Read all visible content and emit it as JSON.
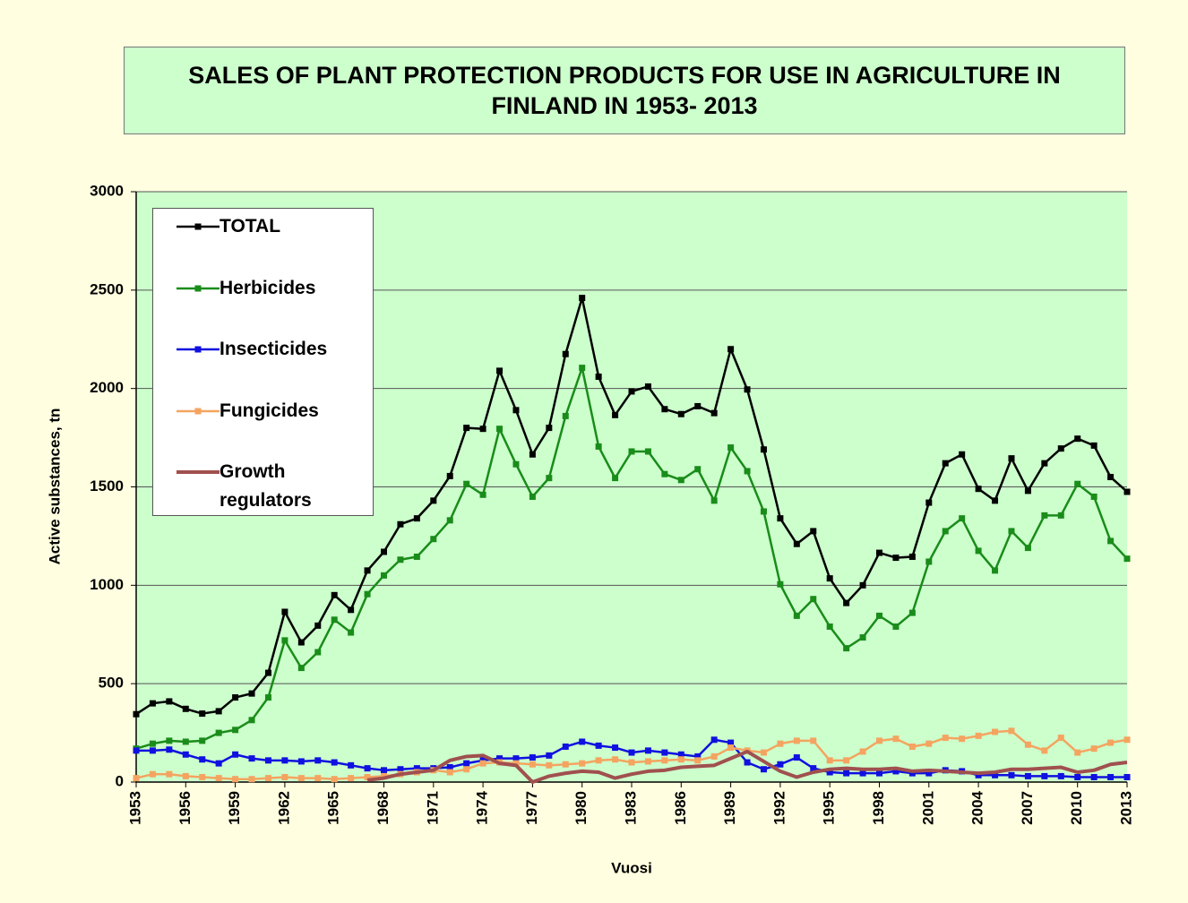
{
  "chart_data": {
    "type": "line",
    "title": "SALES OF PLANT PROTECTION PRODUCTS FOR USE IN AGRICULTURE IN FINLAND IN 1953- 2013",
    "xlabel": "Vuosi",
    "ylabel": "Active substances, tn",
    "x": [
      1953,
      1954,
      1955,
      1956,
      1957,
      1958,
      1959,
      1960,
      1961,
      1962,
      1963,
      1964,
      1965,
      1966,
      1967,
      1968,
      1969,
      1970,
      1971,
      1972,
      1973,
      1974,
      1975,
      1976,
      1977,
      1978,
      1979,
      1980,
      1981,
      1982,
      1983,
      1984,
      1985,
      1986,
      1987,
      1988,
      1989,
      1990,
      1991,
      1992,
      1993,
      1994,
      1995,
      1996,
      1997,
      1998,
      1999,
      2000,
      2001,
      2002,
      2003,
      2004,
      2005,
      2006,
      2007,
      2008,
      2009,
      2010,
      2011,
      2012,
      2013
    ],
    "xlim": [
      1953,
      2013
    ],
    "xticks": [
      1953,
      1956,
      1959,
      1962,
      1965,
      1968,
      1971,
      1974,
      1977,
      1980,
      1983,
      1986,
      1989,
      1992,
      1995,
      1998,
      2001,
      2004,
      2007,
      2010,
      2013
    ],
    "ylim": [
      0,
      3000
    ],
    "yticks": [
      0,
      500,
      1000,
      1500,
      2000,
      2500,
      3000
    ],
    "grid": true,
    "legend": "upper left",
    "series": [
      {
        "name": "TOTAL",
        "color": "#000000",
        "marker": "square",
        "values": [
          345,
          400,
          410,
          372,
          348,
          360,
          430,
          450,
          555,
          865,
          710,
          795,
          950,
          875,
          1075,
          1170,
          1310,
          1340,
          1430,
          1555,
          1800,
          1795,
          2090,
          1890,
          1665,
          1800,
          2175,
          2460,
          2060,
          1865,
          1985,
          2010,
          1895,
          1870,
          1910,
          1875,
          2200,
          1995,
          1690,
          1340,
          1210,
          1275,
          1035,
          910,
          1000,
          1165,
          1140,
          1145,
          1420,
          1620,
          1665,
          1490,
          1430,
          1645,
          1480,
          1620,
          1695,
          1745,
          1710,
          1550,
          1475
        ]
      },
      {
        "name": "Herbicides",
        "color": "#1a8c1a",
        "marker": "square",
        "values": [
          170,
          195,
          210,
          205,
          210,
          250,
          265,
          315,
          430,
          720,
          580,
          660,
          825,
          760,
          955,
          1050,
          1130,
          1145,
          1235,
          1330,
          1515,
          1460,
          1795,
          1615,
          1450,
          1545,
          1860,
          2105,
          1705,
          1545,
          1680,
          1680,
          1565,
          1535,
          1590,
          1430,
          1700,
          1580,
          1375,
          1005,
          845,
          930,
          790,
          680,
          735,
          845,
          790,
          860,
          1120,
          1275,
          1340,
          1175,
          1075,
          1275,
          1190,
          1355,
          1355,
          1515,
          1450,
          1225,
          1135
        ]
      },
      {
        "name": "Insecticides",
        "color": "#1010e0",
        "marker": "square",
        "values": [
          160,
          160,
          165,
          140,
          115,
          95,
          140,
          120,
          110,
          110,
          105,
          110,
          100,
          85,
          70,
          60,
          65,
          70,
          70,
          75,
          95,
          110,
          120,
          120,
          125,
          135,
          180,
          205,
          185,
          175,
          150,
          160,
          150,
          140,
          130,
          215,
          200,
          100,
          65,
          90,
          125,
          70,
          50,
          45,
          45,
          45,
          55,
          45,
          45,
          60,
          55,
          35,
          35,
          35,
          30,
          30,
          30,
          25,
          25,
          25,
          25
        ]
      },
      {
        "name": "Fungicides",
        "color": "#f4a460",
        "marker": "square",
        "values": [
          20,
          40,
          40,
          30,
          25,
          20,
          15,
          15,
          20,
          25,
          20,
          20,
          15,
          20,
          25,
          30,
          40,
          50,
          60,
          50,
          65,
          95,
          100,
          95,
          90,
          85,
          90,
          95,
          110,
          115,
          100,
          105,
          110,
          115,
          110,
          130,
          175,
          160,
          150,
          195,
          210,
          210,
          110,
          110,
          155,
          210,
          220,
          180,
          195,
          225,
          220,
          235,
          255,
          260,
          190,
          160,
          225,
          150,
          170,
          200,
          215
        ]
      },
      {
        "name": "Growth regulators",
        "color": "#a0504f",
        "marker": "none",
        "values": [
          null,
          null,
          null,
          null,
          null,
          null,
          null,
          null,
          null,
          null,
          null,
          null,
          null,
          null,
          10,
          20,
          40,
          50,
          60,
          110,
          130,
          135,
          95,
          85,
          0,
          30,
          45,
          55,
          50,
          20,
          40,
          55,
          60,
          75,
          80,
          85,
          120,
          155,
          105,
          55,
          25,
          50,
          65,
          70,
          65,
          65,
          70,
          55,
          60,
          55,
          50,
          45,
          50,
          65,
          65,
          70,
          75,
          50,
          60,
          90,
          100
        ]
      }
    ]
  }
}
